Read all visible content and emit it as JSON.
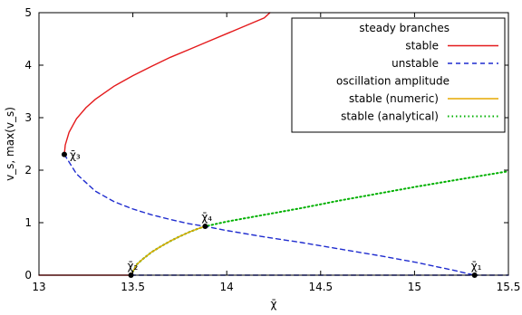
{
  "chart_data": {
    "type": "line",
    "xlabel": "χ̄",
    "ylabel": "v_s, max(v_s)",
    "xlim": [
      13,
      15.5
    ],
    "ylim": [
      0,
      5
    ],
    "xticks": [
      "13",
      "13.5",
      "14",
      "14.5",
      "15",
      "15.5"
    ],
    "yticks": [
      "0",
      "1",
      "2",
      "3",
      "4",
      "5"
    ],
    "grid": false,
    "legend_position": "top-right",
    "legend": [
      {
        "text": "steady branches",
        "style": "header"
      },
      {
        "text": "stable",
        "style": "red-solid"
      },
      {
        "text": "unstable",
        "style": "blue-dashed"
      },
      {
        "text": "oscillation amplitude",
        "style": "header"
      },
      {
        "text": "stable (numeric)",
        "style": "orange-solid"
      },
      {
        "text": "stable (analytical)",
        "style": "green-dotted"
      }
    ],
    "series": [
      {
        "key": "stable_upper",
        "color": "#e41a1c",
        "x": [
          13.135,
          13.14,
          13.16,
          13.2,
          13.25,
          13.3,
          13.4,
          13.5,
          13.6,
          13.7,
          13.8,
          13.9,
          14.0,
          14.1,
          14.2,
          14.23
        ],
        "y": [
          2.3,
          2.48,
          2.72,
          2.98,
          3.19,
          3.35,
          3.6,
          3.8,
          3.98,
          4.15,
          4.3,
          4.45,
          4.6,
          4.75,
          4.9,
          5.0
        ]
      },
      {
        "key": "stable_zero",
        "color": "#e41a1c",
        "x": [
          13.0,
          13.49
        ],
        "y": [
          0,
          0
        ]
      },
      {
        "key": "unstable_middle",
        "color": "#1f2ccf",
        "x": [
          13.135,
          13.2,
          13.3,
          13.4,
          13.5,
          13.6,
          13.7,
          13.8,
          13.9,
          14.0,
          14.2,
          14.4,
          14.6,
          14.8,
          15.0,
          15.2,
          15.32
        ],
        "y": [
          2.3,
          1.93,
          1.6,
          1.4,
          1.26,
          1.15,
          1.06,
          0.98,
          0.92,
          0.85,
          0.73,
          0.62,
          0.5,
          0.38,
          0.25,
          0.1,
          0.0
        ]
      },
      {
        "key": "unstable_zero",
        "color": "#1f2ccf",
        "x": [
          13.49,
          15.5
        ],
        "y": [
          0,
          0
        ]
      },
      {
        "key": "oscillation_numeric",
        "color": "#e6a800",
        "x": [
          13.49,
          13.52,
          13.55,
          13.6,
          13.65,
          13.7,
          13.75,
          13.8,
          13.85,
          13.885
        ],
        "y": [
          0.0,
          0.2,
          0.3,
          0.44,
          0.55,
          0.65,
          0.74,
          0.82,
          0.89,
          0.93
        ]
      },
      {
        "key": "oscillation_analytical",
        "color": "#00b000",
        "x": [
          13.49,
          13.52,
          13.55,
          13.6,
          13.65,
          13.7,
          13.75,
          13.8,
          13.85,
          13.885,
          14.0,
          14.2,
          14.4,
          14.6,
          14.8,
          15.0,
          15.2,
          15.4,
          15.5
        ],
        "y": [
          0.0,
          0.2,
          0.3,
          0.44,
          0.55,
          0.65,
          0.74,
          0.82,
          0.89,
          0.93,
          1.02,
          1.15,
          1.28,
          1.42,
          1.55,
          1.68,
          1.8,
          1.92,
          1.98
        ]
      }
    ],
    "points": [
      {
        "label": "χ̄₁",
        "x": 15.32,
        "y": 0.0
      },
      {
        "label": "χ̄₂",
        "x": 13.49,
        "y": 0.0
      },
      {
        "label": "χ̄₃",
        "x": 13.135,
        "y": 2.3
      },
      {
        "label": "χ̄₄",
        "x": 13.885,
        "y": 0.93
      }
    ]
  }
}
